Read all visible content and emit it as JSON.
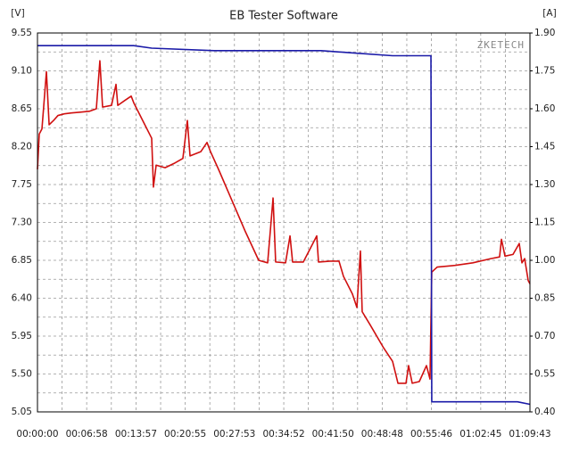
{
  "chart_data": {
    "type": "line",
    "title": "EB Tester Software",
    "y_label": "[V]",
    "y2_label": "[A]",
    "watermark": "ZKETECH",
    "xlim": [
      0,
      4183
    ],
    "xticks": [
      {
        "value": 0,
        "label": "00:00:00"
      },
      {
        "value": 418,
        "label": "00:06:58"
      },
      {
        "value": 837,
        "label": "00:13:57"
      },
      {
        "value": 1255,
        "label": "00:20:55"
      },
      {
        "value": 1673,
        "label": "00:27:53"
      },
      {
        "value": 2092,
        "label": "00:34:52"
      },
      {
        "value": 2510,
        "label": "00:41:50"
      },
      {
        "value": 2928,
        "label": "00:48:48"
      },
      {
        "value": 3346,
        "label": "00:55:46"
      },
      {
        "value": 3765,
        "label": "01:02:45"
      },
      {
        "value": 4183,
        "label": "01:09:43"
      }
    ],
    "ylim": [
      5.05,
      9.55
    ],
    "yticks": [
      {
        "value": 5.05,
        "label": "5.05"
      },
      {
        "value": 5.5,
        "label": "5.50"
      },
      5.95,
      {
        "value": 6.4,
        "label": "6.40"
      },
      6.85,
      {
        "value": 7.3,
        "label": "7.30"
      },
      7.75,
      {
        "value": 8.2,
        "label": "8.20"
      },
      8.65,
      {
        "value": 9.1,
        "label": "9.10"
      },
      9.55
    ],
    "y2lim": [
      0.4,
      1.9
    ],
    "y2ticks": [
      {
        "value": 0.4,
        "label": "0.40"
      },
      0.55,
      {
        "value": 0.7,
        "label": "0.70"
      },
      0.85,
      {
        "value": 1,
        "label": "1.00"
      },
      1.15,
      {
        "value": 1.3,
        "label": "1.30"
      },
      1.45,
      {
        "value": 1.6,
        "label": "1.60"
      },
      1.75,
      {
        "value": 1.9,
        "label": "1.90"
      }
    ],
    "grid": true,
    "minor_grid": true,
    "series": [
      {
        "color": "#d01010",
        "x": [
          0,
          15,
          38,
          76,
          99,
          136,
          174,
          227,
          288,
          364,
          440,
          500,
          530,
          553,
          629,
          667,
          682,
          743,
          796,
          818,
          894,
          970,
          985,
          1008,
          1084,
          1159,
          1235,
          1273,
          1296,
          1387,
          1440,
          1470,
          1538,
          1652,
          1766,
          1879,
          1955,
          2001,
          2023,
          2107,
          2145,
          2167,
          2258,
          2372,
          2387,
          2486,
          2561,
          2599,
          2675,
          2713,
          2743,
          2758,
          2827,
          2940,
          3016,
          3062,
          3130,
          3152,
          3183,
          3243,
          3304,
          3334,
          3349,
          3395,
          3546,
          3698,
          3850,
          3925,
          3941,
          3971,
          4039,
          4092,
          4115,
          4138,
          4168,
          4183
        ],
        "values": [
          7.93,
          8.35,
          8.41,
          9.09,
          8.46,
          8.51,
          8.57,
          8.59,
          8.6,
          8.61,
          8.62,
          8.65,
          9.22,
          8.67,
          8.69,
          8.94,
          8.69,
          8.75,
          8.8,
          8.72,
          8.51,
          8.3,
          7.72,
          7.98,
          7.95,
          8.0,
          8.06,
          8.51,
          8.09,
          8.14,
          8.25,
          8.14,
          7.93,
          7.56,
          7.19,
          6.85,
          6.82,
          7.59,
          6.83,
          6.82,
          7.14,
          6.83,
          6.83,
          7.14,
          6.83,
          6.84,
          6.84,
          6.66,
          6.45,
          6.29,
          6.96,
          6.24,
          6.08,
          5.81,
          5.65,
          5.39,
          5.39,
          5.6,
          5.39,
          5.41,
          5.6,
          5.44,
          6.71,
          6.77,
          6.79,
          6.82,
          6.87,
          6.89,
          7.1,
          6.9,
          6.92,
          7.05,
          6.82,
          6.87,
          6.61,
          6.57
        ]
      },
      {
        "color": "#1a1aa8",
        "axis": "y2",
        "x": [
          0,
          440,
          818,
          970,
          1500,
          1955,
          2410,
          2713,
          3016,
          3334,
          3342,
          3349,
          3774,
          4077,
          4183
        ],
        "values": [
          1.85,
          1.85,
          1.85,
          1.84,
          1.83,
          1.83,
          1.83,
          1.82,
          1.81,
          1.81,
          1.81,
          0.44,
          0.44,
          0.44,
          0.43
        ]
      }
    ]
  }
}
